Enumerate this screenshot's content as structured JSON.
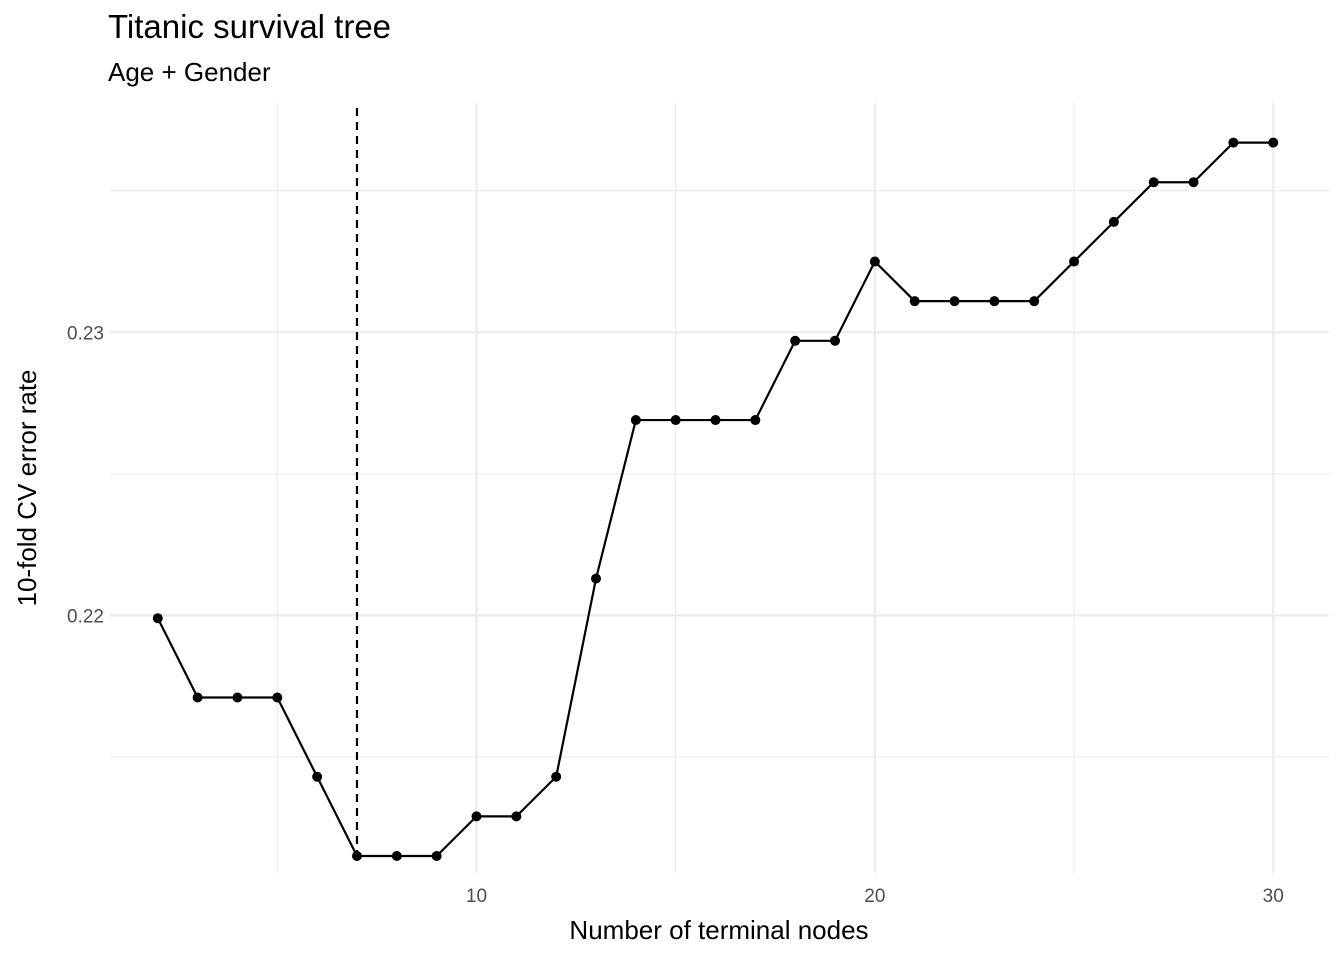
{
  "chart_data": {
    "type": "line",
    "title": "Titanic survival tree",
    "subtitle": "Age + Gender",
    "xlabel": "Number of terminal nodes",
    "ylabel": "10-fold CV error rate",
    "x_ticks": [
      10,
      20,
      30
    ],
    "x_tick_labels": [
      "10",
      "20",
      "30"
    ],
    "y_ticks": [
      0.22,
      0.23
    ],
    "y_tick_labels": [
      "0.22",
      "0.23"
    ],
    "xlim": [
      0.8,
      31.4
    ],
    "ylim": [
      0.2109,
      0.2381
    ],
    "grid": true,
    "markers": true,
    "line_color": "#000000",
    "reference_line": {
      "axis": "x",
      "value": 7,
      "style": "dashed",
      "color": "#000000"
    },
    "series": [
      {
        "x": [
          2,
          3,
          4,
          5,
          6,
          7,
          8,
          9,
          10,
          11,
          12,
          13,
          14,
          15,
          16,
          17,
          18,
          19,
          20,
          21,
          22,
          23,
          24,
          25,
          26,
          27,
          28,
          29,
          30
        ],
        "values": [
          0.2199,
          0.2171,
          0.2171,
          0.2171,
          0.2143,
          0.2115,
          0.2115,
          0.2115,
          0.2129,
          0.2129,
          0.2143,
          0.2213,
          0.2269,
          0.2269,
          0.2269,
          0.2269,
          0.2297,
          0.2297,
          0.2325,
          0.2311,
          0.2311,
          0.2311,
          0.2311,
          0.2325,
          0.2339,
          0.2353,
          0.2353,
          0.2367,
          0.2367
        ]
      }
    ]
  }
}
